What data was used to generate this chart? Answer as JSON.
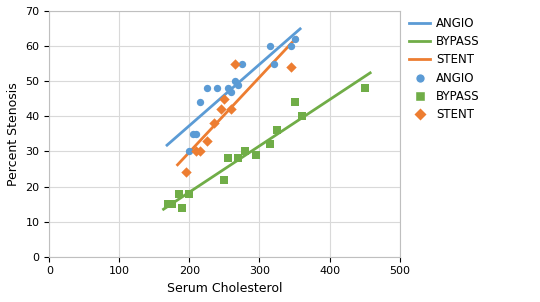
{
  "angio_x": [
    200,
    205,
    210,
    215,
    225,
    240,
    255,
    260,
    265,
    270,
    275,
    315,
    320,
    345,
    350
  ],
  "angio_y": [
    30,
    35,
    35,
    44,
    48,
    48,
    48,
    47,
    50,
    49,
    55,
    60,
    55,
    60,
    62
  ],
  "bypass_x": [
    170,
    175,
    185,
    190,
    200,
    250,
    255,
    270,
    280,
    295,
    315,
    325,
    350,
    360,
    450
  ],
  "bypass_y": [
    15,
    15,
    18,
    14,
    18,
    22,
    28,
    28,
    30,
    29,
    32,
    36,
    44,
    40,
    48
  ],
  "stent_x": [
    195,
    210,
    215,
    225,
    235,
    245,
    250,
    260,
    265,
    345
  ],
  "stent_y": [
    24,
    30,
    30,
    33,
    38,
    42,
    45,
    42,
    55,
    54
  ],
  "angio_color": "#5B9BD5",
  "bypass_color": "#70AD47",
  "stent_color": "#ED7D31",
  "bg_color": "#FFFFFF",
  "grid_color": "#D9D9D9",
  "xlim": [
    0,
    500
  ],
  "ylim": [
    0,
    70
  ],
  "xlabel": "Serum Cholesterol",
  "ylabel": "Percent Stenosis",
  "xticks": [
    0,
    100,
    200,
    300,
    400,
    500
  ],
  "yticks": [
    0,
    10,
    20,
    30,
    40,
    50,
    60,
    70
  ],
  "angio_line_range": [
    168,
    358
  ],
  "bypass_line_range": [
    163,
    458
  ],
  "stent_line_range": [
    183,
    353
  ]
}
